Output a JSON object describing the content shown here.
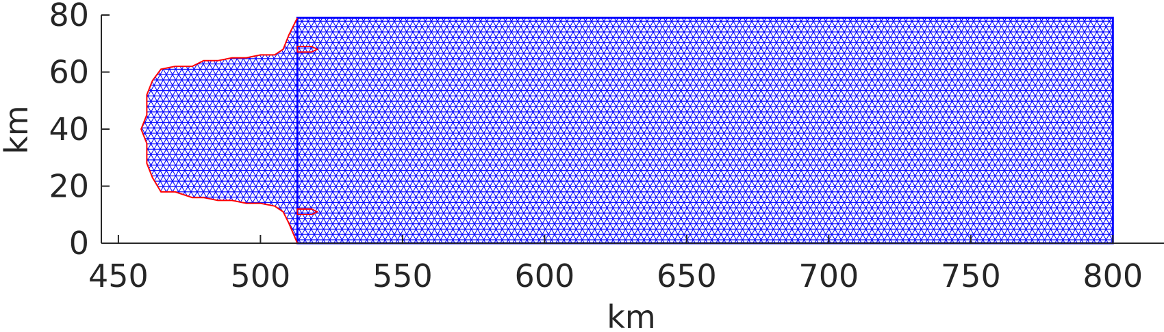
{
  "chart_data": {
    "type": "mesh",
    "xlabel": "km",
    "ylabel": "km",
    "xlim": [
      444,
      818
    ],
    "ylim": [
      0,
      80
    ],
    "xticks": [
      450,
      500,
      550,
      600,
      650,
      700,
      750,
      800
    ],
    "yticks": [
      0,
      20,
      40,
      60,
      80
    ],
    "grid": false,
    "mesh_color": "#0000ff",
    "boundary_color": "#ff0000",
    "mesh_domain": {
      "x_range": [
        458,
        800
      ],
      "y_range": [
        0,
        79
      ]
    },
    "boundary_outline": [
      [
        513,
        79
      ],
      [
        510,
        73
      ],
      [
        508,
        68
      ],
      [
        505,
        66
      ],
      [
        500,
        66
      ],
      [
        495,
        65
      ],
      [
        490,
        65
      ],
      [
        485,
        64
      ],
      [
        480,
        64
      ],
      [
        476,
        62
      ],
      [
        470,
        62
      ],
      [
        465,
        61
      ],
      [
        462,
        57
      ],
      [
        460,
        52
      ],
      [
        460,
        45
      ],
      [
        458,
        40
      ],
      [
        460,
        35
      ],
      [
        460,
        28
      ],
      [
        462,
        23
      ],
      [
        465,
        18
      ],
      [
        470,
        18
      ],
      [
        476,
        16
      ],
      [
        480,
        16
      ],
      [
        485,
        15
      ],
      [
        490,
        15
      ],
      [
        495,
        14
      ],
      [
        500,
        14
      ],
      [
        505,
        13
      ],
      [
        508,
        11
      ],
      [
        510,
        7
      ],
      [
        513,
        0
      ]
    ],
    "boundary_islands": [
      {
        "x": [
          513,
          520
        ],
        "y": 68
      },
      {
        "x": [
          513,
          520
        ],
        "y": 11
      }
    ]
  }
}
